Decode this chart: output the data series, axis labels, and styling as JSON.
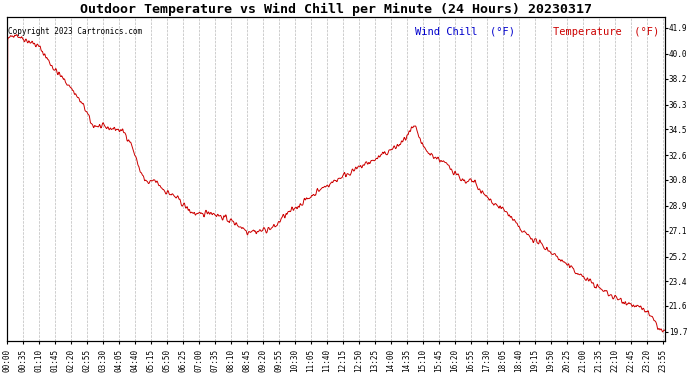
{
  "title": "Outdoor Temperature vs Wind Chill per Minute (24 Hours) 20230317",
  "copyright_text": "Copyright 2023 Cartronics.com",
  "legend_wind_chill": "Wind Chill  (°F)",
  "legend_temperature": "Temperature  (°F)",
  "line_color": "#cc0000",
  "background_color": "#ffffff",
  "grid_color": "#bbbbbb",
  "title_color": "#000000",
  "wind_chill_color": "#0000cc",
  "temperature_color": "#cc0000",
  "yticks": [
    19.7,
    21.6,
    23.4,
    25.2,
    27.1,
    28.9,
    30.8,
    32.6,
    34.5,
    36.3,
    38.2,
    40.0,
    41.9
  ],
  "ylim": [
    19.0,
    42.7
  ],
  "n_points": 1440,
  "title_fontsize": 9.5,
  "tick_fontsize": 5.5,
  "legend_fontsize": 7.5,
  "copyright_fontsize": 5.5,
  "keypoints": [
    [
      0,
      41.0
    ],
    [
      15,
      41.5
    ],
    [
      30,
      41.2
    ],
    [
      55,
      40.8
    ],
    [
      70,
      40.5
    ],
    [
      100,
      39.0
    ],
    [
      140,
      37.5
    ],
    [
      170,
      36.0
    ],
    [
      185,
      34.8
    ],
    [
      220,
      34.6
    ],
    [
      240,
      34.5
    ],
    [
      255,
      34.3
    ],
    [
      270,
      33.5
    ],
    [
      290,
      31.5
    ],
    [
      300,
      30.8
    ],
    [
      310,
      30.5
    ],
    [
      320,
      30.8
    ],
    [
      330,
      30.5
    ],
    [
      345,
      30.0
    ],
    [
      370,
      29.5
    ],
    [
      400,
      28.5
    ],
    [
      420,
      28.2
    ],
    [
      440,
      28.5
    ],
    [
      455,
      28.3
    ],
    [
      470,
      28.1
    ],
    [
      490,
      27.8
    ],
    [
      510,
      27.4
    ],
    [
      520,
      27.2
    ],
    [
      525,
      27.0
    ],
    [
      535,
      27.15
    ],
    [
      545,
      27.0
    ],
    [
      555,
      27.1
    ],
    [
      570,
      27.2
    ],
    [
      580,
      27.3
    ],
    [
      590,
      27.5
    ],
    [
      600,
      28.0
    ],
    [
      620,
      28.5
    ],
    [
      640,
      29.0
    ],
    [
      660,
      29.5
    ],
    [
      680,
      30.0
    ],
    [
      700,
      30.4
    ],
    [
      720,
      30.8
    ],
    [
      740,
      31.2
    ],
    [
      760,
      31.5
    ],
    [
      780,
      31.9
    ],
    [
      800,
      32.2
    ],
    [
      820,
      32.6
    ],
    [
      840,
      33.0
    ],
    [
      860,
      33.4
    ],
    [
      870,
      33.8
    ],
    [
      880,
      34.2
    ],
    [
      885,
      34.5
    ],
    [
      890,
      34.6
    ],
    [
      895,
      34.5
    ],
    [
      900,
      34.0
    ],
    [
      910,
      33.2
    ],
    [
      920,
      32.8
    ],
    [
      935,
      32.5
    ],
    [
      950,
      32.2
    ],
    [
      965,
      31.8
    ],
    [
      975,
      31.5
    ],
    [
      985,
      31.2
    ],
    [
      995,
      30.8
    ],
    [
      1005,
      30.5
    ],
    [
      1015,
      30.8
    ],
    [
      1025,
      30.5
    ],
    [
      1035,
      30.0
    ],
    [
      1050,
      29.5
    ],
    [
      1070,
      29.0
    ],
    [
      1090,
      28.5
    ],
    [
      1110,
      27.8
    ],
    [
      1120,
      27.2
    ],
    [
      1150,
      26.5
    ],
    [
      1180,
      25.8
    ],
    [
      1210,
      25.0
    ],
    [
      1240,
      24.2
    ],
    [
      1270,
      23.5
    ],
    [
      1300,
      22.8
    ],
    [
      1330,
      22.2
    ],
    [
      1360,
      21.8
    ],
    [
      1380,
      21.5
    ],
    [
      1400,
      21.2
    ],
    [
      1415,
      20.5
    ],
    [
      1425,
      20.0
    ],
    [
      1435,
      19.7
    ],
    [
      1439,
      19.7
    ]
  ]
}
